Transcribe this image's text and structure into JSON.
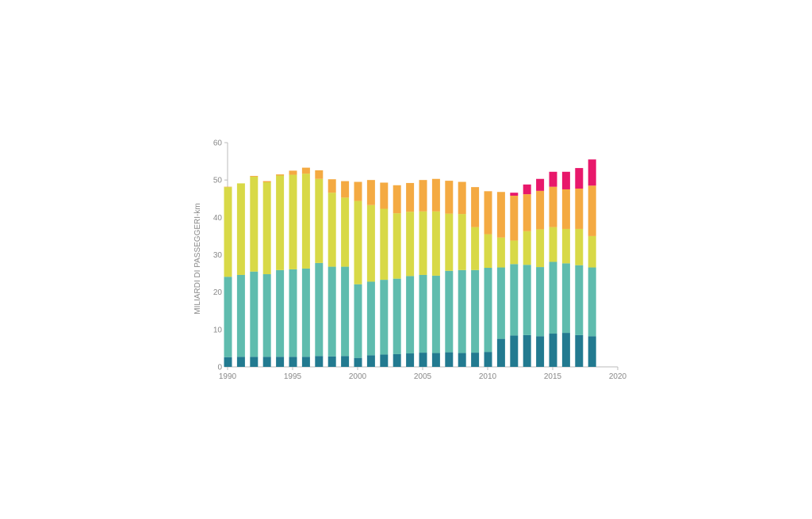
{
  "chart_data": {
    "type": "bar",
    "stacked": true,
    "title": "",
    "xlabel": "",
    "ylabel": "MILIARDI DI PASSEGGERI-km",
    "ylim": [
      0,
      60
    ],
    "yticks": [
      "0",
      "10",
      "20",
      "30",
      "40",
      "50",
      "60"
    ],
    "xlim": [
      1990,
      2020
    ],
    "xticks": [
      "1990",
      "1995",
      "2000",
      "2005",
      "2010",
      "2015",
      "2020"
    ],
    "grid": false,
    "x": [
      1990,
      1991,
      1992,
      1993,
      1994,
      1995,
      1996,
      1997,
      1998,
      1999,
      2000,
      2001,
      2002,
      2003,
      2004,
      2005,
      2006,
      2007,
      2008,
      2009,
      2010,
      2011,
      2012,
      2013,
      2014,
      2015,
      2016,
      2017,
      2018
    ],
    "series": [
      {
        "color": "#227a90",
        "values": [
          2.6,
          2.7,
          2.7,
          2.7,
          2.7,
          2.7,
          2.7,
          2.9,
          2.8,
          2.9,
          2.4,
          3.1,
          3.3,
          3.4,
          3.6,
          3.8,
          3.7,
          3.9,
          3.7,
          3.8,
          4.0,
          7.5,
          8.4,
          8.5,
          8.2,
          8.9,
          9.1,
          8.5,
          8.2
        ]
      },
      {
        "color": "#5fbcae",
        "values": [
          21.5,
          21.9,
          22.8,
          22.1,
          23.2,
          23.4,
          23.6,
          24.9,
          24.0,
          23.9,
          19.7,
          19.7,
          20.0,
          20.2,
          20.7,
          20.8,
          20.7,
          21.8,
          22.2,
          22.1,
          22.5,
          19.1,
          19.1,
          18.8,
          18.5,
          19.2,
          18.6,
          18.7,
          18.4
        ]
      },
      {
        "color": "#d8d947",
        "values": [
          24.0,
          24.5,
          25.4,
          24.6,
          25.3,
          25.3,
          25.4,
          22.5,
          19.8,
          18.5,
          22.3,
          20.5,
          19.0,
          17.5,
          17.2,
          17.0,
          17.2,
          15.3,
          15.0,
          11.5,
          9.0,
          8.0,
          6.3,
          9.0,
          10.1,
          9.3,
          9.2,
          9.7,
          8.4
        ]
      },
      {
        "color": "#f4aa42",
        "values": [
          0.1,
          0.0,
          0.2,
          0.3,
          0.3,
          1.1,
          1.6,
          2.3,
          3.6,
          4.4,
          5.1,
          6.7,
          7.0,
          7.5,
          7.7,
          8.4,
          8.7,
          8.8,
          8.6,
          10.7,
          11.5,
          12.2,
          12.0,
          9.9,
          10.3,
          10.8,
          10.6,
          10.8,
          13.5
        ]
      },
      {
        "color": "#e8186b",
        "values": [
          0,
          0,
          0,
          0,
          0,
          0,
          0,
          0,
          0,
          0,
          0,
          0,
          0,
          0,
          0,
          0,
          0,
          0,
          0,
          0,
          0,
          0,
          0.8,
          2.6,
          3.2,
          4.0,
          4.7,
          5.5,
          7.0
        ]
      }
    ]
  }
}
